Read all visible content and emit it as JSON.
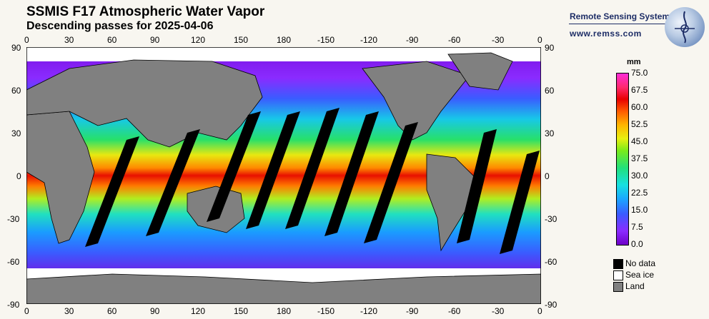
{
  "header": {
    "title": "SSMIS F17 Atmospheric Water Vapor",
    "subtitle": "Descending passes for 2025-04-06"
  },
  "brand": {
    "name": "Remote Sensing Systems",
    "url": "www.remss.com"
  },
  "axes": {
    "x_ticks": [
      "0",
      "30",
      "60",
      "90",
      "120",
      "150",
      "180",
      "-150",
      "-120",
      "-90",
      "-60",
      "-30",
      "0"
    ],
    "y_ticks": [
      "90",
      "60",
      "30",
      "0",
      "-30",
      "-60",
      "-90"
    ],
    "lon_range": [
      0,
      360
    ],
    "lat_range": [
      -90,
      90
    ]
  },
  "colorbar": {
    "unit": "mm",
    "ticks": [
      "75.0",
      "67.5",
      "60.0",
      "52.5",
      "45.0",
      "37.5",
      "30.0",
      "22.5",
      "15.0",
      "7.5",
      "0.0"
    ],
    "range": [
      0,
      75
    ]
  },
  "legend": [
    {
      "label": "No data",
      "color": "#000000"
    },
    {
      "label": "Sea ice",
      "color": "#ffffff"
    },
    {
      "label": "Land",
      "color": "#808080"
    }
  ],
  "colors": {
    "land": "#808080",
    "no_data": "#000000",
    "sea_ice": "#ffffff",
    "brand": "#1d2d66"
  }
}
